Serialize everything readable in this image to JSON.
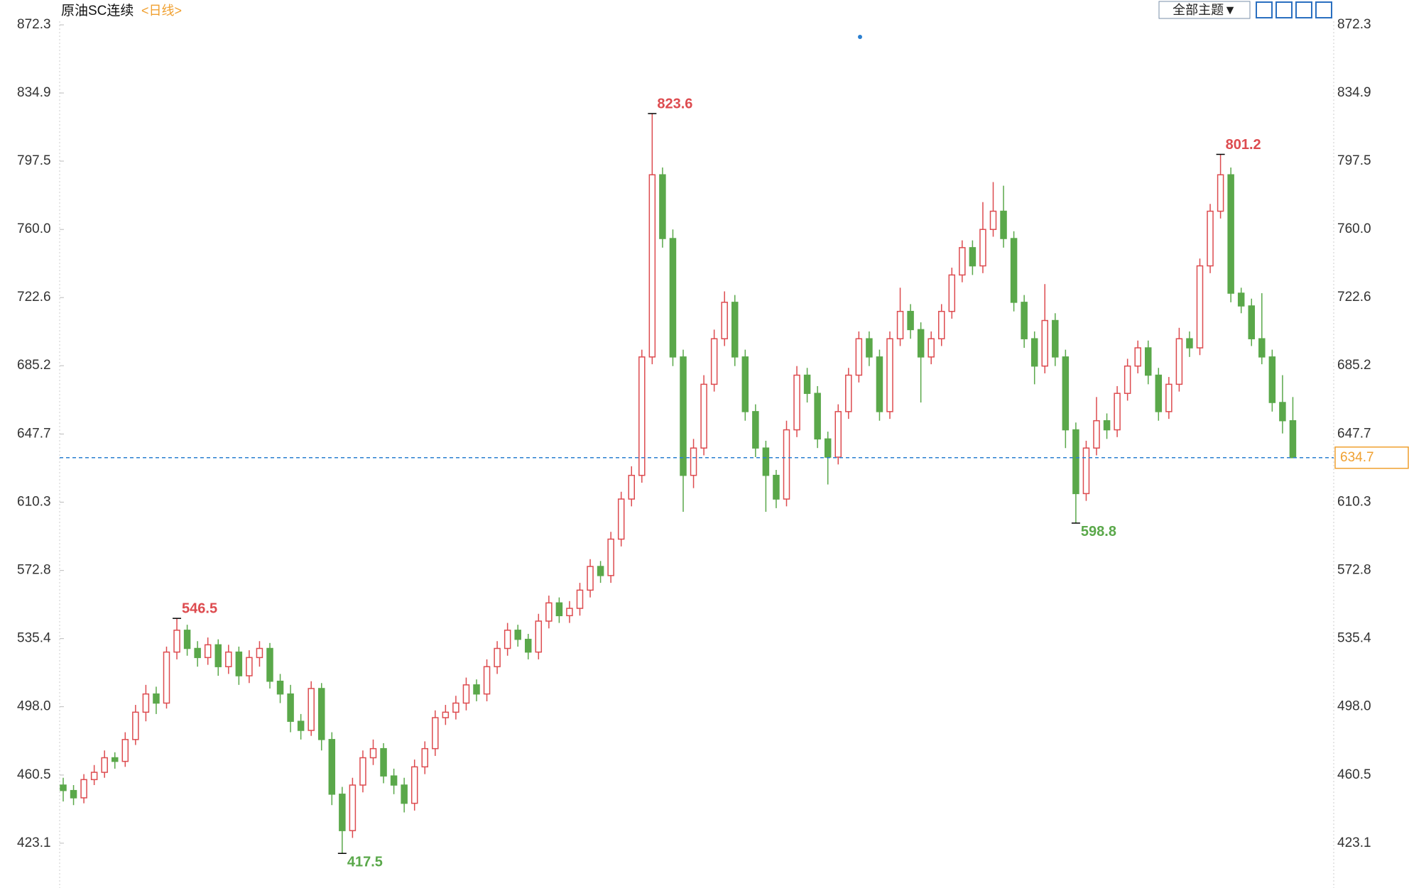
{
  "chart_data": {
    "type": "candlestick",
    "title": "原油SC连续",
    "period": "<日线>",
    "toolbar_button": "全部主题▼",
    "up_color": "#dd4b4f",
    "down_color": "#5aa84a",
    "last_color": "#f0a030",
    "last_line_color": "#2a7fd0",
    "ylim": [
      398.5,
      872.3
    ],
    "yticks": [
      423.1,
      460.5,
      {
        "value": 498,
        "label": "498.0"
      },
      535.4,
      572.8,
      610.3,
      647.7,
      685.2,
      722.6,
      {
        "value": 760,
        "label": "760.0"
      },
      797.5,
      834.9,
      872.3
    ],
    "candles": [
      [
        455,
        459,
        446,
        452
      ],
      [
        452,
        455,
        444,
        448
      ],
      [
        448,
        461,
        445,
        458
      ],
      [
        458,
        466,
        455,
        462
      ],
      [
        462,
        474,
        459,
        470
      ],
      [
        470,
        473,
        464,
        468
      ],
      [
        468,
        484,
        465,
        480
      ],
      [
        480,
        499,
        477,
        495
      ],
      [
        495,
        510,
        490,
        505
      ],
      [
        505,
        509,
        494,
        500
      ],
      [
        500,
        531,
        497,
        528
      ],
      [
        528,
        546.5,
        524,
        540
      ],
      [
        540,
        543,
        526,
        530
      ],
      [
        530,
        534,
        520,
        525
      ],
      [
        525,
        536,
        521,
        532
      ],
      [
        532,
        535,
        515,
        520
      ],
      [
        520,
        532,
        516,
        528
      ],
      [
        528,
        531,
        510,
        515
      ],
      [
        515,
        529,
        511,
        525
      ],
      [
        525,
        534,
        520,
        530
      ],
      [
        530,
        533,
        508,
        512
      ],
      [
        512,
        516,
        500,
        505
      ],
      [
        505,
        510,
        484,
        490
      ],
      [
        490,
        494,
        480,
        485
      ],
      [
        485,
        512,
        482,
        508
      ],
      [
        508,
        511,
        474,
        480
      ],
      [
        480,
        484,
        444,
        450
      ],
      [
        450,
        454,
        417.5,
        430
      ],
      [
        430,
        459,
        426,
        455
      ],
      [
        455,
        474,
        451,
        470
      ],
      [
        470,
        480,
        466,
        475
      ],
      [
        475,
        478,
        456,
        460
      ],
      [
        460,
        464,
        450,
        455
      ],
      [
        455,
        459,
        440,
        445
      ],
      [
        445,
        469,
        441,
        465
      ],
      [
        465,
        479,
        461,
        475
      ],
      [
        475,
        496,
        471,
        492
      ],
      [
        492,
        499,
        488,
        495
      ],
      [
        495,
        504,
        491,
        500
      ],
      [
        500,
        514,
        496,
        510
      ],
      [
        510,
        513,
        501,
        505
      ],
      [
        505,
        524,
        501,
        520
      ],
      [
        520,
        534,
        516,
        530
      ],
      [
        530,
        544,
        526,
        540
      ],
      [
        540,
        543,
        531,
        535
      ],
      [
        535,
        538,
        524,
        528
      ],
      [
        528,
        549,
        524,
        545
      ],
      [
        545,
        559,
        541,
        555
      ],
      [
        555,
        558,
        544,
        548
      ],
      [
        548,
        556,
        544,
        552
      ],
      [
        552,
        566,
        548,
        562
      ],
      [
        562,
        579,
        558,
        575
      ],
      [
        575,
        578,
        566,
        570
      ],
      [
        570,
        594,
        566,
        590
      ],
      [
        590,
        616,
        586,
        612
      ],
      [
        612,
        630,
        608,
        625
      ],
      [
        625,
        694,
        621,
        690
      ],
      [
        690,
        823.6,
        686,
        790
      ],
      [
        790,
        794,
        750,
        755
      ],
      [
        755,
        760,
        685,
        690
      ],
      [
        690,
        694,
        605,
        625
      ],
      [
        625,
        645,
        618,
        640
      ],
      [
        640,
        680,
        636,
        675
      ],
      [
        675,
        705,
        671,
        700
      ],
      [
        700,
        726,
        696,
        720
      ],
      [
        720,
        724,
        685,
        690
      ],
      [
        690,
        694,
        655,
        660
      ],
      [
        660,
        664,
        635,
        640
      ],
      [
        640,
        644,
        605,
        625
      ],
      [
        625,
        628,
        607,
        612
      ],
      [
        612,
        655,
        608,
        650
      ],
      [
        650,
        685,
        646,
        680
      ],
      [
        680,
        684,
        665,
        670
      ],
      [
        670,
        674,
        640,
        645
      ],
      [
        645,
        649,
        620,
        635
      ],
      [
        635,
        664,
        631,
        660
      ],
      [
        660,
        684,
        656,
        680
      ],
      [
        680,
        704,
        676,
        700
      ],
      [
        700,
        704,
        685,
        690
      ],
      [
        690,
        694,
        655,
        660
      ],
      [
        660,
        704,
        656,
        700
      ],
      [
        700,
        728,
        696,
        715
      ],
      [
        715,
        719,
        700,
        705
      ],
      [
        705,
        709,
        665,
        690
      ],
      [
        690,
        704,
        686,
        700
      ],
      [
        700,
        719,
        696,
        715
      ],
      [
        715,
        739,
        711,
        735
      ],
      [
        735,
        754,
        731,
        750
      ],
      [
        750,
        754,
        735,
        740
      ],
      [
        740,
        775,
        736,
        760
      ],
      [
        760,
        786,
        756,
        770
      ],
      [
        770,
        784,
        750,
        755
      ],
      [
        755,
        759,
        715,
        720
      ],
      [
        720,
        724,
        695,
        700
      ],
      [
        700,
        704,
        675,
        685
      ],
      [
        685,
        730,
        681,
        710
      ],
      [
        710,
        714,
        685,
        690
      ],
      [
        690,
        694,
        640,
        650
      ],
      [
        650,
        654,
        598.8,
        615
      ],
      [
        615,
        644,
        611,
        640
      ],
      [
        640,
        668,
        636,
        655
      ],
      [
        655,
        659,
        645,
        650
      ],
      [
        650,
        674,
        646,
        670
      ],
      [
        670,
        689,
        666,
        685
      ],
      [
        685,
        699,
        681,
        695
      ],
      [
        695,
        699,
        675,
        680
      ],
      [
        680,
        684,
        655,
        660
      ],
      [
        660,
        679,
        656,
        675
      ],
      [
        675,
        706,
        671,
        700
      ],
      [
        700,
        704,
        690,
        695
      ],
      [
        695,
        744,
        691,
        740
      ],
      [
        740,
        774,
        736,
        770
      ],
      [
        770,
        801.2,
        766,
        790
      ],
      [
        790,
        794,
        720,
        725
      ],
      [
        725,
        728,
        714,
        718
      ],
      [
        718,
        722,
        696,
        700
      ],
      [
        700,
        725,
        686,
        690
      ],
      [
        690,
        694,
        660,
        665
      ],
      [
        665,
        680,
        648,
        655
      ],
      [
        655,
        668,
        634.7,
        634.7
      ]
    ],
    "high_marks": [
      546.5,
      823.6,
      801.2
    ],
    "low_marks": [
      417.5,
      598.8
    ],
    "last": 634.7
  }
}
